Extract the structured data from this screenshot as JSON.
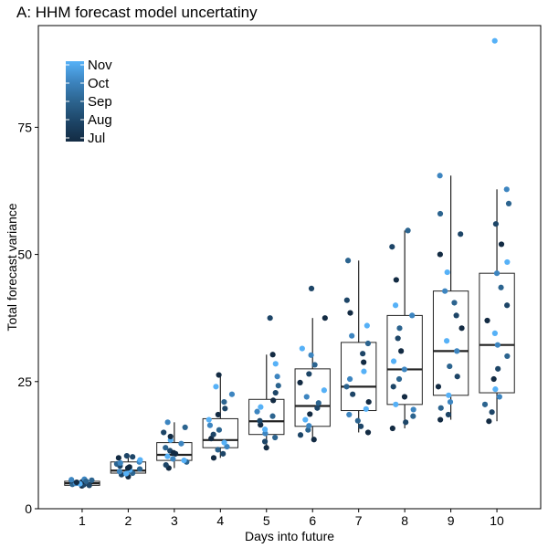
{
  "chart_data": {
    "type": "boxplot",
    "title": "A: HHM forecast model uncertatiny",
    "xlabel": "Days into future",
    "ylabel": "Total forecast variance",
    "x_ticks": [
      "1",
      "2",
      "3",
      "4",
      "5",
      "6",
      "7",
      "8",
      "9",
      "10"
    ],
    "y_ticks": [
      0,
      25,
      50,
      75
    ],
    "ylim": [
      0,
      95
    ],
    "grid": false,
    "legend": {
      "placement": "top-left",
      "type": "colorbar",
      "labels": [
        "Nov",
        "Oct",
        "Sep",
        "Aug",
        "Jul"
      ],
      "colors": [
        "#56b1f7",
        "#3d85c0",
        "#2c648f",
        "#1d4567",
        "#132b43"
      ]
    },
    "boxes": [
      {
        "day": 1,
        "min": 4.5,
        "q1": 4.6,
        "median": 5.0,
        "q3": 5.4,
        "max": 5.8
      },
      {
        "day": 2,
        "min": 6.3,
        "q1": 7.0,
        "median": 7.5,
        "q3": 9.2,
        "max": 10.4
      },
      {
        "day": 3,
        "min": 8.0,
        "q1": 9.5,
        "median": 10.6,
        "q3": 13.0,
        "max": 17.0
      },
      {
        "day": 4,
        "min": 10.0,
        "q1": 12.0,
        "median": 13.5,
        "q3": 17.7,
        "max": 26.3
      },
      {
        "day": 5,
        "min": 12.0,
        "q1": 14.6,
        "median": 17.2,
        "q3": 21.5,
        "max": 30.3
      },
      {
        "day": 6,
        "min": 13.6,
        "q1": 16.2,
        "median": 20.2,
        "q3": 27.5,
        "max": 37.5
      },
      {
        "day": 7,
        "min": 15.0,
        "q1": 19.3,
        "median": 24.0,
        "q3": 32.7,
        "max": 48.8
      },
      {
        "day": 8,
        "min": 15.8,
        "q1": 20.5,
        "median": 27.4,
        "q3": 38.0,
        "max": 54.7
      },
      {
        "day": 9,
        "min": 17.5,
        "q1": 22.3,
        "median": 31.0,
        "q3": 42.8,
        "max": 65.5
      },
      {
        "day": 10,
        "min": 17.2,
        "q1": 22.8,
        "median": 32.2,
        "q3": 46.3,
        "max": 62.8
      }
    ],
    "points": [
      {
        "x": 1,
        "values": [
          4.5,
          4.7,
          4.8,
          5.0,
          5.1,
          5.3,
          5.5,
          5.6,
          5.8,
          4.9,
          5.2,
          4.6,
          5.4,
          5.7
        ],
        "months": [
          4,
          3,
          2,
          1,
          0,
          4,
          3,
          2,
          1,
          0,
          4,
          3,
          2,
          1
        ]
      },
      {
        "x": 2,
        "values": [
          6.3,
          6.7,
          7.0,
          7.3,
          7.6,
          8.0,
          8.4,
          8.8,
          9.2,
          9.6,
          10.0,
          10.4,
          7.8,
          9.0,
          6.9,
          8.2,
          10.2
        ],
        "months": [
          4,
          3,
          2,
          1,
          0,
          4,
          3,
          2,
          1,
          0,
          4,
          3,
          2,
          1,
          0,
          4,
          3
        ]
      },
      {
        "x": 3,
        "values": [
          8.0,
          8.6,
          9.2,
          9.8,
          10.3,
          10.8,
          11.4,
          12.0,
          12.8,
          13.5,
          14.2,
          15.0,
          16.0,
          17.0,
          9.5,
          11.0
        ],
        "months": [
          4,
          3,
          2,
          1,
          0,
          4,
          3,
          2,
          1,
          0,
          4,
          3,
          2,
          1,
          0,
          4
        ]
      },
      {
        "x": 4,
        "values": [
          10.0,
          10.8,
          11.6,
          12.2,
          13.0,
          13.8,
          14.6,
          15.5,
          16.4,
          17.5,
          18.5,
          19.7,
          21.0,
          22.5,
          24.0,
          26.3
        ],
        "months": [
          4,
          3,
          2,
          1,
          0,
          4,
          3,
          2,
          1,
          0,
          4,
          3,
          2,
          1,
          0,
          4
        ]
      },
      {
        "x": 5,
        "values": [
          12.0,
          13.2,
          14.0,
          14.8,
          15.6,
          16.5,
          17.3,
          18.2,
          19.1,
          20.0,
          21.3,
          22.8,
          24.2,
          26.0,
          28.5,
          30.3,
          37.5
        ],
        "months": [
          4,
          3,
          2,
          1,
          0,
          4,
          3,
          2,
          1,
          0,
          4,
          3,
          2,
          1,
          0,
          4,
          3
        ]
      },
      {
        "x": 6,
        "values": [
          13.6,
          14.5,
          15.5,
          16.3,
          17.5,
          18.6,
          19.8,
          20.8,
          22.0,
          23.3,
          24.8,
          26.5,
          28.3,
          30.2,
          31.5,
          37.5,
          43.3
        ],
        "months": [
          4,
          3,
          2,
          1,
          0,
          4,
          3,
          2,
          1,
          0,
          4,
          3,
          2,
          1,
          0,
          4,
          3
        ]
      },
      {
        "x": 7,
        "values": [
          15.0,
          16.2,
          17.3,
          18.5,
          19.6,
          21.0,
          22.5,
          24.0,
          25.5,
          27.0,
          28.8,
          30.5,
          32.5,
          34.0,
          36.0,
          38.5,
          41.0,
          48.8
        ],
        "months": [
          4,
          3,
          2,
          1,
          0,
          4,
          3,
          2,
          1,
          0,
          4,
          3,
          2,
          1,
          0,
          4,
          3,
          2
        ]
      },
      {
        "x": 8,
        "values": [
          15.8,
          17.0,
          18.2,
          19.5,
          20.5,
          22.0,
          24.0,
          25.5,
          27.4,
          29.0,
          31.0,
          33.5,
          35.5,
          38.0,
          40.0,
          45.0,
          51.5,
          54.7
        ],
        "months": [
          4,
          3,
          2,
          1,
          0,
          4,
          3,
          2,
          1,
          0,
          4,
          3,
          2,
          1,
          0,
          4,
          3,
          2
        ]
      },
      {
        "x": 9,
        "values": [
          17.5,
          18.5,
          19.8,
          21.0,
          22.3,
          24.0,
          26.0,
          28.0,
          31.0,
          33.0,
          35.5,
          38.0,
          40.5,
          42.8,
          46.5,
          50.0,
          54.0,
          58.0,
          65.5
        ],
        "months": [
          4,
          3,
          2,
          1,
          0,
          4,
          3,
          2,
          1,
          0,
          4,
          3,
          2,
          1,
          0,
          4,
          3,
          2,
          1
        ]
      },
      {
        "x": 10,
        "values": [
          17.2,
          19.0,
          20.5,
          22.0,
          23.5,
          25.5,
          27.5,
          30.0,
          32.2,
          34.5,
          37.0,
          40.0,
          43.5,
          46.3,
          48.5,
          52.0,
          56.0,
          60.0,
          62.8,
          92.0
        ],
        "months": [
          4,
          3,
          2,
          1,
          0,
          4,
          3,
          2,
          1,
          0,
          4,
          3,
          2,
          1,
          0,
          4,
          3,
          2,
          1,
          0
        ]
      }
    ]
  }
}
